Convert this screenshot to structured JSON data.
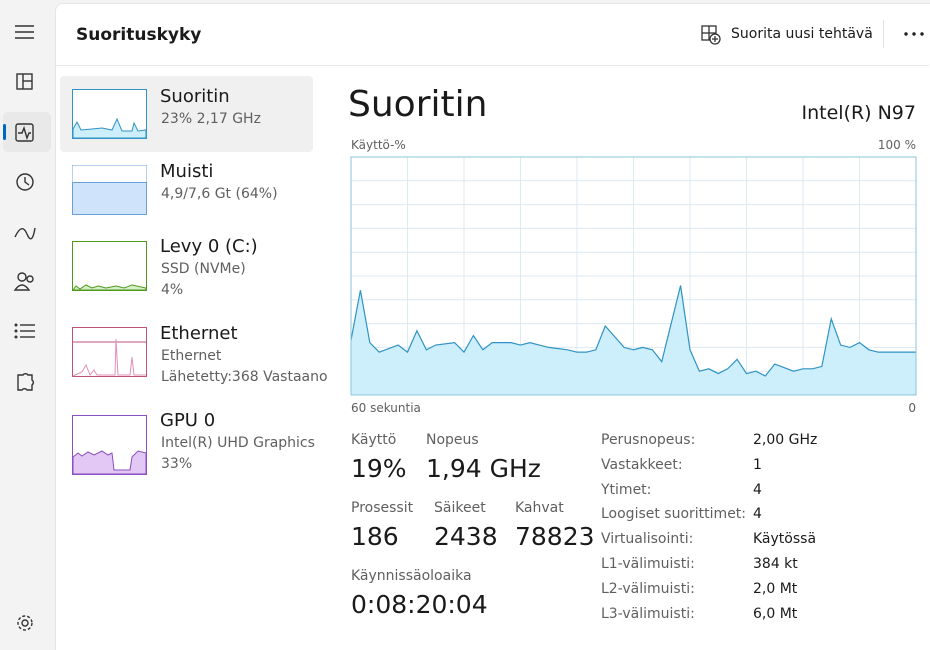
{
  "header": {
    "title": "Suorituskyky",
    "action": "Suorita uusi tehtävä"
  },
  "devices": [
    {
      "name": "Suoritin",
      "details": [
        "23% 2,17 GHz"
      ]
    },
    {
      "name": "Muisti",
      "details": [
        "4,9/7,6 Gt (64%)"
      ]
    },
    {
      "name": "Levy 0 (C:)",
      "details": [
        "SSD (NVMe)",
        "4%"
      ]
    },
    {
      "name": "Ethernet",
      "details": [
        "Ethernet",
        "Lähetetty:368  Vastaano"
      ]
    },
    {
      "name": "GPU 0",
      "details": [
        "Intel(R) UHD Graphics",
        "33%"
      ]
    }
  ],
  "panel": {
    "title": "Suoritin",
    "model": "Intel(R) N97"
  },
  "chart_data": {
    "type": "area",
    "ylabel": "Käyttö-%",
    "color": "#2f93c4",
    "ylim": [
      0,
      100
    ],
    "yticks": [
      {
        "value": 100,
        "label": "100 %"
      }
    ],
    "xlim": [
      60,
      0
    ],
    "xticks": [
      {
        "value": 60,
        "label": "60 sekuntia"
      },
      0
    ],
    "x": [
      60,
      59,
      58,
      57,
      55,
      54,
      53,
      52,
      51,
      49,
      48,
      47,
      46,
      45,
      43,
      42,
      41,
      40,
      39,
      37,
      36,
      35,
      34,
      33,
      31,
      30,
      29,
      28,
      27,
      25,
      24,
      23,
      22,
      21,
      20,
      19,
      18,
      17,
      16,
      15,
      13,
      12,
      11,
      10,
      9,
      8,
      7,
      6,
      5,
      4,
      2,
      1,
      0
    ],
    "values": [
      23,
      44,
      22,
      18,
      21,
      18,
      27,
      19,
      21,
      22,
      18,
      25,
      19,
      22,
      22,
      21,
      22,
      21,
      20,
      19,
      18,
      18,
      19,
      29,
      20,
      19,
      20,
      19,
      14,
      46,
      19,
      10,
      11,
      9,
      11,
      15,
      9,
      10,
      8,
      13,
      10,
      11,
      11,
      12,
      32,
      21,
      20,
      22,
      19,
      18,
      18,
      18,
      18
    ]
  },
  "stats": [
    {
      "label": "Käyttö",
      "value": "19%"
    },
    {
      "label": "Nopeus",
      "value": "1,94 GHz"
    },
    {
      "label": "Prosessit",
      "value": "186"
    },
    {
      "label": "Säikeet",
      "value": "2438"
    },
    {
      "label": "Kahvat",
      "value": "78823"
    },
    {
      "label": "Käynnissäoloaika",
      "value": "0:08:20:04"
    }
  ],
  "specs": [
    [
      "Perusnopeus:",
      "2,00 GHz"
    ],
    [
      "Vastakkeet:",
      "1"
    ],
    [
      "Ytimet:",
      "4"
    ],
    [
      "Loogiset suorittimet:",
      "4"
    ],
    [
      "Virtualisointi:",
      "Käytössä"
    ],
    [
      "L1-välimuisti:",
      "384 kt"
    ],
    [
      "L2-välimuisti:",
      "2,0 Mt"
    ],
    [
      "L3-välimuisti:",
      "6,0 Mt"
    ]
  ]
}
